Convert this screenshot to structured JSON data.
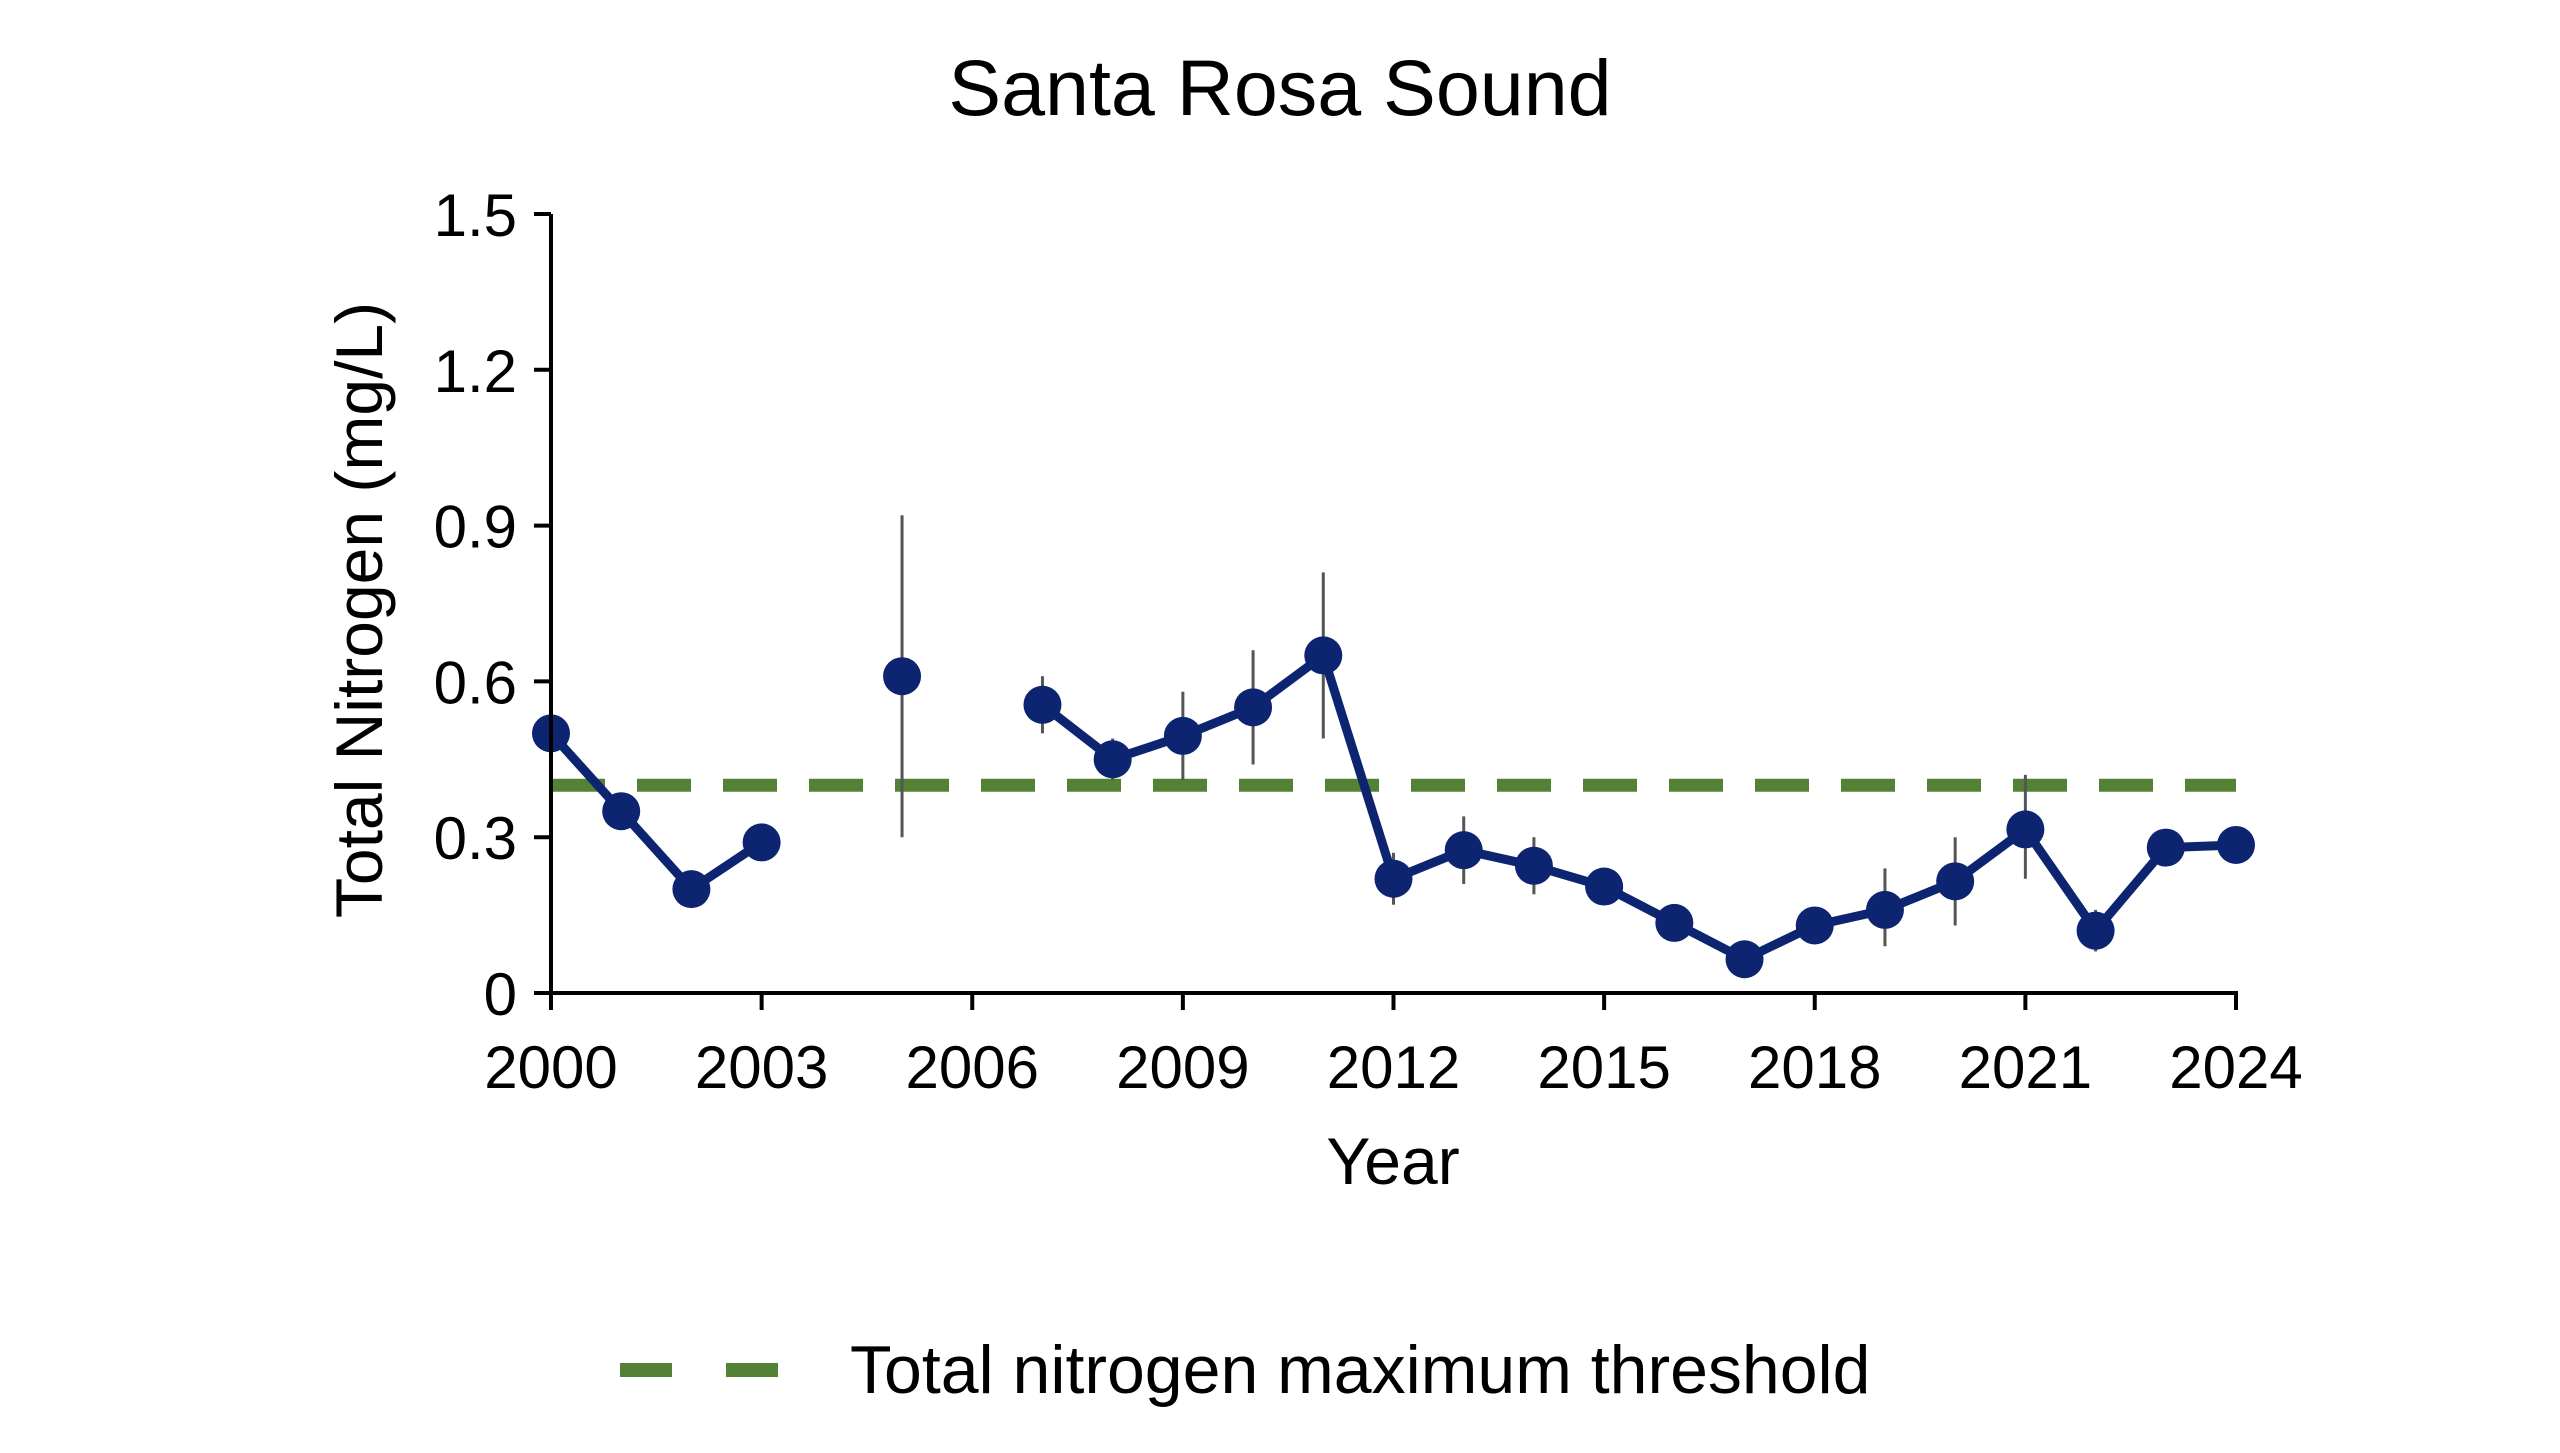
{
  "chart_data": {
    "type": "line",
    "title": "Santa Rosa Sound",
    "xlabel": "Year",
    "ylabel": "Total Nitrogen (mg/L)",
    "xlim": [
      2000,
      2024
    ],
    "ylim": [
      0,
      1.5
    ],
    "x_ticks": [
      "2000",
      "2003",
      "2006",
      "2009",
      "2012",
      "2015",
      "2018",
      "2021",
      "2024"
    ],
    "y_ticks": [
      "0",
      "0.3",
      "0.6",
      "0.9",
      "1.2",
      "1.5"
    ],
    "grid": false,
    "legend_position": "bottom",
    "series": [
      {
        "color": "#0d2471",
        "marker": "circle",
        "points": [
          {
            "x": 2000,
            "y": 0.5,
            "err_low": null,
            "err_high": null
          },
          {
            "x": 2001,
            "y": 0.35,
            "err_low": null,
            "err_high": null
          },
          {
            "x": 2002,
            "y": 0.2,
            "err_low": null,
            "err_high": null
          },
          {
            "x": 2003,
            "y": 0.29,
            "err_low": null,
            "err_high": null
          },
          {
            "x": 2004,
            "y": null
          },
          {
            "x": 2005,
            "y": 0.61,
            "err_low": 0.3,
            "err_high": 0.92
          },
          {
            "x": 2006,
            "y": null
          },
          {
            "x": 2007,
            "y": 0.555,
            "err_low": 0.5,
            "err_high": 0.61
          },
          {
            "x": 2008,
            "y": 0.45,
            "err_low": 0.41,
            "err_high": 0.49
          },
          {
            "x": 2009,
            "y": 0.495,
            "err_low": 0.41,
            "err_high": 0.58
          },
          {
            "x": 2010,
            "y": 0.55,
            "err_low": 0.44,
            "err_high": 0.66
          },
          {
            "x": 2011,
            "y": 0.65,
            "err_low": 0.49,
            "err_high": 0.81
          },
          {
            "x": 2012,
            "y": 0.22,
            "err_low": 0.17,
            "err_high": 0.27
          },
          {
            "x": 2013,
            "y": 0.275,
            "err_low": 0.21,
            "err_high": 0.34
          },
          {
            "x": 2014,
            "y": 0.245,
            "err_low": 0.19,
            "err_high": 0.3
          },
          {
            "x": 2015,
            "y": 0.205,
            "err_low": 0.17,
            "err_high": 0.24
          },
          {
            "x": 2016,
            "y": 0.135,
            "err_low": 0.12,
            "err_high": 0.15
          },
          {
            "x": 2017,
            "y": 0.065,
            "err_low": 0.05,
            "err_high": 0.08
          },
          {
            "x": 2018,
            "y": 0.13,
            "err_low": 0.11,
            "err_high": 0.15
          },
          {
            "x": 2019,
            "y": 0.16,
            "err_low": 0.09,
            "err_high": 0.24
          },
          {
            "x": 2020,
            "y": 0.215,
            "err_low": 0.13,
            "err_high": 0.3
          },
          {
            "x": 2021,
            "y": 0.315,
            "err_low": 0.22,
            "err_high": 0.42
          },
          {
            "x": 2022,
            "y": 0.12,
            "err_low": 0.08,
            "err_high": 0.16
          },
          {
            "x": 2023,
            "y": 0.28,
            "err_low": null,
            "err_high": null
          },
          {
            "x": 2024,
            "y": 0.285,
            "err_low": null,
            "err_high": null
          }
        ]
      }
    ],
    "threshold": {
      "name": "Total nitrogen maximum threshold",
      "value": 0.4,
      "color": "#548235",
      "style": "dashed"
    }
  }
}
